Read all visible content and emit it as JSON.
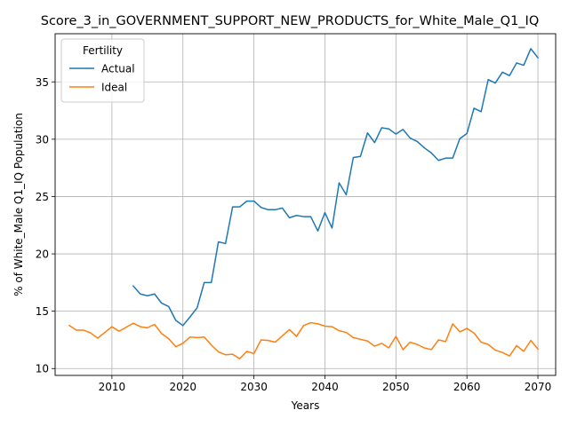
{
  "chart_data": {
    "type": "line",
    "title": "Score_3_in_GOVERNMENT_SUPPORT_NEW_PRODUCTS_for_White_Male_Q1_IQ",
    "xlabel": "Years",
    "ylabel": "% of White_Male Q1_IQ Population",
    "xlim": [
      2002,
      2072.5
    ],
    "ylim": [
      9.4,
      39.2
    ],
    "xticks": [
      2010,
      2020,
      2030,
      2040,
      2050,
      2060,
      2070
    ],
    "yticks": [
      10,
      15,
      20,
      25,
      30,
      35
    ],
    "grid": true,
    "legend": {
      "title": "Fertility",
      "position": "top-left"
    },
    "series": [
      {
        "name": "Actual",
        "color": "#1f77b4",
        "x": [
          2013,
          2014,
          2015,
          2016,
          2017,
          2018,
          2019,
          2020,
          2021,
          2022,
          2023,
          2024,
          2025,
          2026,
          2027,
          2028,
          2029,
          2030,
          2031,
          2032,
          2033,
          2034,
          2035,
          2036,
          2037,
          2038,
          2039,
          2040,
          2041,
          2042,
          2043,
          2044,
          2045,
          2046,
          2047,
          2048,
          2049,
          2050,
          2051,
          2052,
          2053,
          2054,
          2055,
          2056,
          2057,
          2058,
          2059,
          2060,
          2061,
          2062,
          2063,
          2064,
          2065,
          2066,
          2067,
          2068,
          2069,
          2070
        ],
        "values": [
          17.2,
          16.5,
          16.35,
          16.5,
          15.7,
          15.4,
          14.2,
          13.75,
          14.5,
          15.3,
          17.5,
          17.5,
          21.05,
          20.9,
          24.1,
          24.1,
          24.6,
          24.6,
          24.05,
          23.85,
          23.85,
          24.0,
          23.15,
          23.35,
          23.25,
          23.25,
          22.0,
          23.6,
          22.25,
          26.2,
          25.15,
          28.4,
          28.5,
          30.55,
          29.7,
          31.0,
          30.9,
          30.45,
          30.85,
          30.1,
          29.8,
          29.25,
          28.8,
          28.15,
          28.35,
          28.35,
          30.05,
          30.5,
          32.7,
          32.4,
          35.2,
          34.9,
          35.85,
          35.55,
          36.65,
          36.45,
          37.9,
          37.1
        ]
      },
      {
        "name": "Ideal",
        "color": "#ff7f0e",
        "x": [
          2004,
          2005,
          2006,
          2007,
          2008,
          2009,
          2010,
          2011,
          2012,
          2013,
          2014,
          2015,
          2016,
          2017,
          2018,
          2019,
          2020,
          2021,
          2022,
          2023,
          2024,
          2025,
          2026,
          2027,
          2028,
          2029,
          2030,
          2031,
          2032,
          2033,
          2034,
          2035,
          2036,
          2037,
          2038,
          2039,
          2040,
          2041,
          2042,
          2043,
          2044,
          2045,
          2046,
          2047,
          2048,
          2049,
          2050,
          2051,
          2052,
          2053,
          2054,
          2055,
          2056,
          2057,
          2058,
          2059,
          2060,
          2061,
          2062,
          2063,
          2064,
          2065,
          2066,
          2067,
          2068,
          2069,
          2070
        ],
        "values": [
          13.75,
          13.35,
          13.35,
          13.1,
          12.65,
          13.15,
          13.65,
          13.25,
          13.6,
          13.95,
          13.65,
          13.55,
          13.85,
          13.05,
          12.6,
          11.9,
          12.2,
          12.75,
          12.7,
          12.75,
          12.05,
          11.45,
          11.2,
          11.25,
          10.85,
          11.5,
          11.3,
          12.5,
          12.45,
          12.3,
          12.85,
          13.4,
          12.8,
          13.75,
          14.0,
          13.9,
          13.7,
          13.65,
          13.3,
          13.15,
          12.7,
          12.55,
          12.4,
          11.95,
          12.2,
          11.8,
          12.8,
          11.65,
          12.3,
          12.1,
          11.8,
          11.65,
          12.5,
          12.35,
          13.9,
          13.2,
          13.5,
          13.1,
          12.3,
          12.1,
          11.6,
          11.4,
          11.1,
          12.0,
          11.5,
          12.45,
          11.7
        ]
      }
    ]
  }
}
